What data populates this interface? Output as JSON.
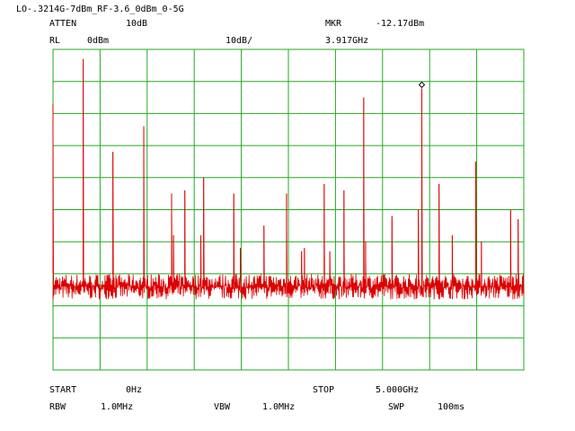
{
  "header": {
    "title": "LO-.3214G-7dBm_RF-3.6_0dBm_0-5G",
    "atten_label": "ATTEN",
    "atten_value": "10dB",
    "mkr_label": "MKR",
    "mkr_value": "-12.17dBm",
    "rl_label": "RL",
    "rl_value": "0dBm",
    "scale_value": "10dB/",
    "mkr_freq": "3.917GHz"
  },
  "footer": {
    "start_label": "START",
    "start_value": "0Hz",
    "stop_label": "STOP",
    "stop_value": "5.000GHz",
    "rbw_label": "RBW",
    "rbw_value": "1.0MHz",
    "vbw_label": "VBW",
    "vbw_value": "1.0MHz",
    "swp_label": "SWP",
    "swp_value": "100ms"
  },
  "colors": {
    "grid": "#22aa22",
    "trace": "#dd0000",
    "marker": "#000000"
  },
  "chart_data": {
    "type": "line",
    "x_range_ghz": [
      0,
      5.0
    ],
    "y_range_dbm": [
      -100,
      0
    ],
    "y_divisions": 10,
    "x_divisions": 10,
    "grid": true,
    "noise_floor_dbm": [
      -78,
      -70
    ],
    "marker": {
      "x_ghz": 3.917,
      "y_dbm": -12.17
    },
    "series": [
      {
        "x_ghz": [
          0.0,
          0.321,
          0.636,
          0.964,
          1.26,
          1.28,
          1.4,
          1.57,
          1.6,
          1.92,
          1.99,
          2.24,
          2.48,
          2.64,
          2.67,
          2.88,
          2.94,
          3.09,
          3.3,
          3.32,
          3.6,
          3.88,
          3.917,
          4.1,
          4.24,
          4.49,
          4.55,
          4.86,
          4.94
        ],
        "y_dbm": [
          -17,
          -3,
          -32,
          -24,
          -45,
          -58,
          -44,
          -58,
          -40,
          -45,
          -62,
          -55,
          -45,
          -63,
          -62,
          -42,
          -63,
          -44,
          -15,
          -60,
          -52,
          -50,
          -12.17,
          -42,
          -58,
          -35,
          -60,
          -50,
          -53
        ]
      }
    ]
  }
}
